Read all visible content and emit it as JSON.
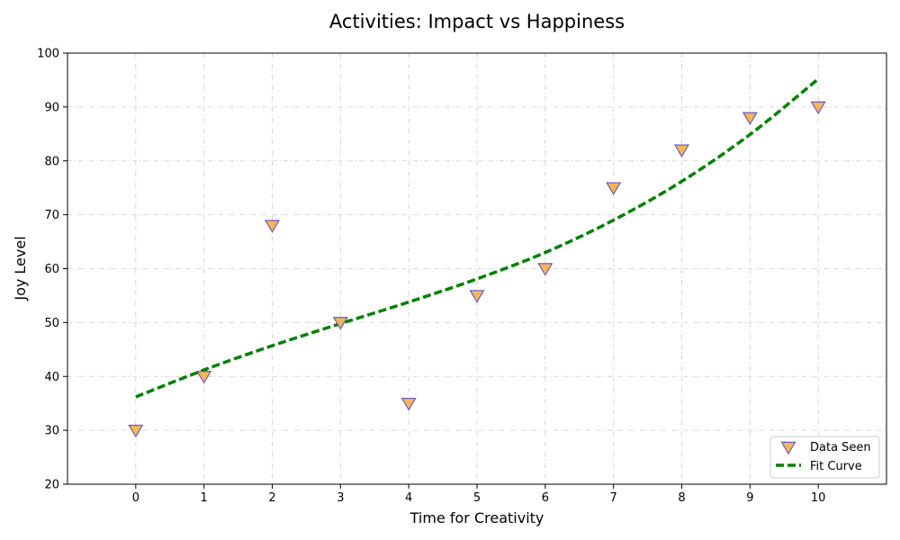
{
  "chart_data": {
    "type": "scatter",
    "title": "Activities: Impact vs Happiness",
    "xlabel": "Time for Creativity",
    "ylabel": "Joy Level",
    "xlim": [
      -1,
      11
    ],
    "ylim": [
      20,
      100
    ],
    "xticks": [
      0,
      1,
      2,
      3,
      4,
      5,
      6,
      7,
      8,
      9,
      10
    ],
    "yticks": [
      20,
      30,
      40,
      50,
      60,
      70,
      80,
      90,
      100
    ],
    "grid": true,
    "legend_position": "lower-right",
    "series": [
      {
        "name": "Data Seen",
        "kind": "scatter",
        "marker": "triangle-down",
        "fill_color": "#f5b656",
        "edge_color": "#6a5acd",
        "x": [
          0,
          1,
          2,
          3,
          4,
          5,
          6,
          7,
          8,
          9,
          10
        ],
        "y": [
          30,
          40,
          68,
          50,
          35,
          55,
          60,
          75,
          82,
          88,
          90
        ]
      },
      {
        "name": "Fit Curve",
        "kind": "line",
        "line_style": "dashed",
        "color": "#008000",
        "x": [
          0,
          1,
          2,
          3,
          4,
          5,
          6,
          7,
          8,
          9,
          10
        ],
        "y": [
          36.2,
          41.2,
          45.7,
          49.8,
          53.8,
          58.1,
          63.0,
          69.0,
          76.2,
          84.9,
          95.2
        ]
      }
    ]
  }
}
